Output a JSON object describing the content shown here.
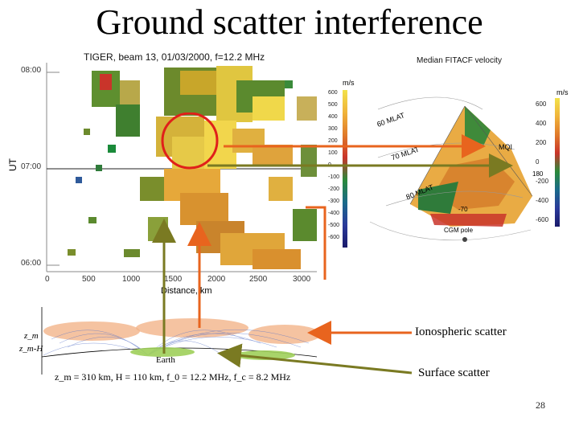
{
  "slide": {
    "title": "Ground scatter interference",
    "page_number": "28"
  },
  "rti_plot": {
    "header": "TIGER, beam 13, 01/03/2000, f=12.2 MHz",
    "y_axis_label": "UT",
    "y_ticks": [
      "08:00",
      "07:00",
      "06:00"
    ],
    "x_ticks": [
      "0",
      "500",
      "1000",
      "1500",
      "2000",
      "2500",
      "3000"
    ],
    "x_axis_label": "Distance, km"
  },
  "fov_map": {
    "title": "Median FITACF velocity",
    "left_unit": "m/s",
    "right_unit": "m/s",
    "left_scale": [
      "600",
      "500",
      "400",
      "300",
      "200",
      "100",
      "0",
      "-100",
      "-200",
      "-300",
      "-400",
      "-500",
      "-600"
    ],
    "right_scale": [
      "600",
      "400",
      "200",
      "0",
      "-200",
      "-400",
      "-600"
    ],
    "lat_labels": [
      "60 MLAT",
      "70 MLAT",
      "80 MLAT"
    ],
    "site_label": "MQI",
    "pole_label": "CGM pole",
    "lon_labels": [
      "180",
      "-70"
    ]
  },
  "raytrace": {
    "label_zm": "z_m",
    "label_zmH": "z_m-H",
    "label_earth": "Earth",
    "params": "z_m = 310 km, H = 110 km, f_0 = 12.2 MHz, f_c = 8.2 MHz"
  },
  "annotations": {
    "ionospheric": "Ionospheric scatter",
    "surface": "Surface scatter"
  },
  "colors": {
    "orange_arrow": "#e8641e",
    "olive_arrow": "#7a7a22",
    "red_circle": "#e0201a"
  }
}
